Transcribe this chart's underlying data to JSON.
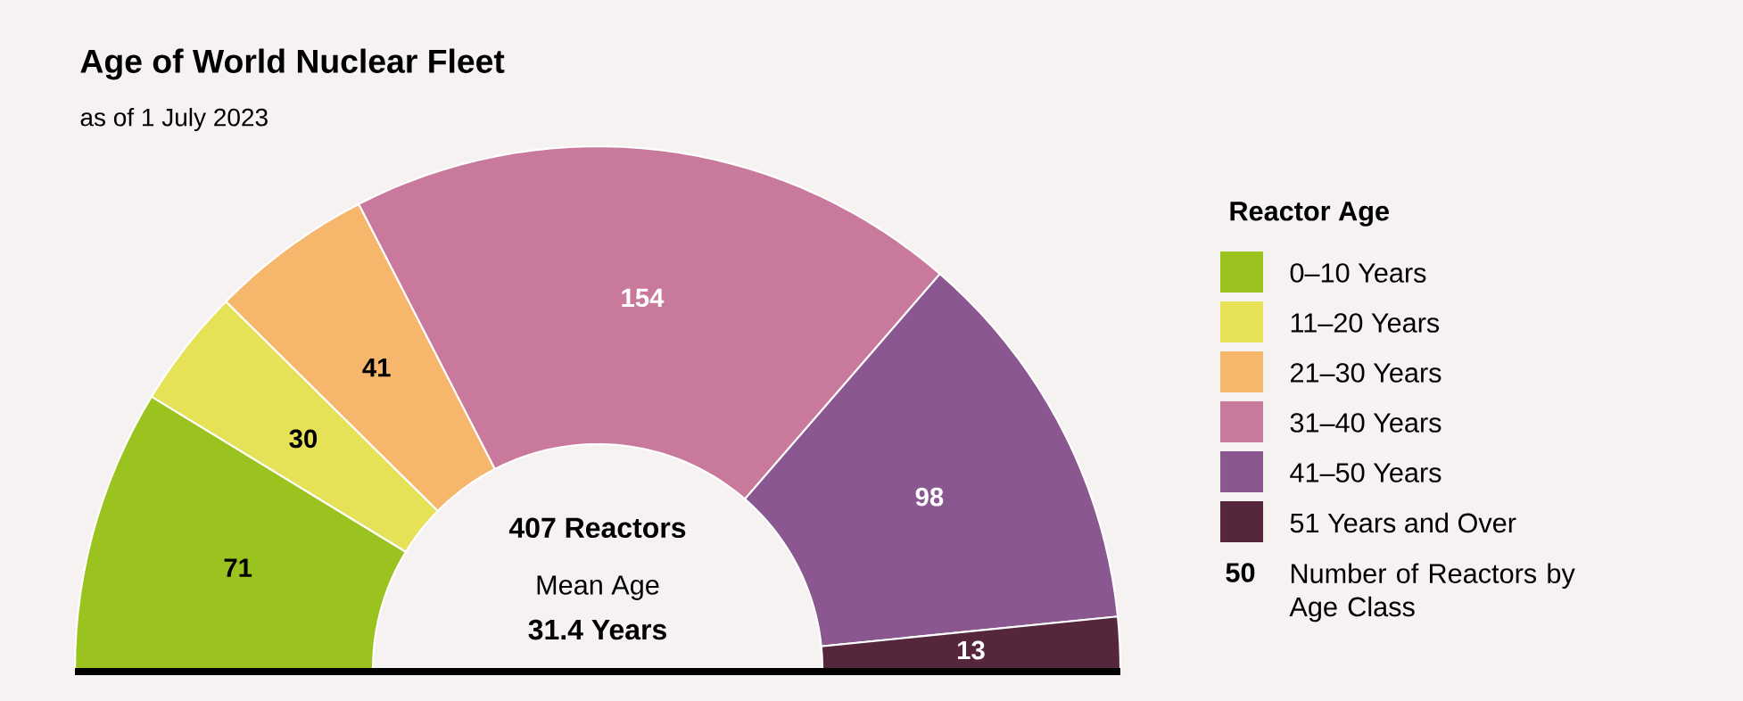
{
  "chart_data": {
    "type": "donut",
    "title": "Age of World Nuclear Fleet",
    "subtitle": "as of 1 July 2023",
    "legend_title": "Reactor Age",
    "legend": "right",
    "data_labels": true,
    "categories": [
      "0–10 Years",
      "11–20 Years",
      "21–30 Years",
      "31–40 Years",
      "41–50 Years",
      "51 Years and Over"
    ],
    "values": [
      71,
      30,
      41,
      154,
      98,
      13
    ],
    "colors": [
      "#9bc31f",
      "#e5e257",
      "#f6b66b",
      "#c97a9c",
      "#8a5790",
      "#55263c"
    ],
    "annotations": [
      "407 Reactors",
      "Mean Age",
      "31.4 Years",
      "50",
      "Number of Reactors by Age Class"
    ]
  }
}
